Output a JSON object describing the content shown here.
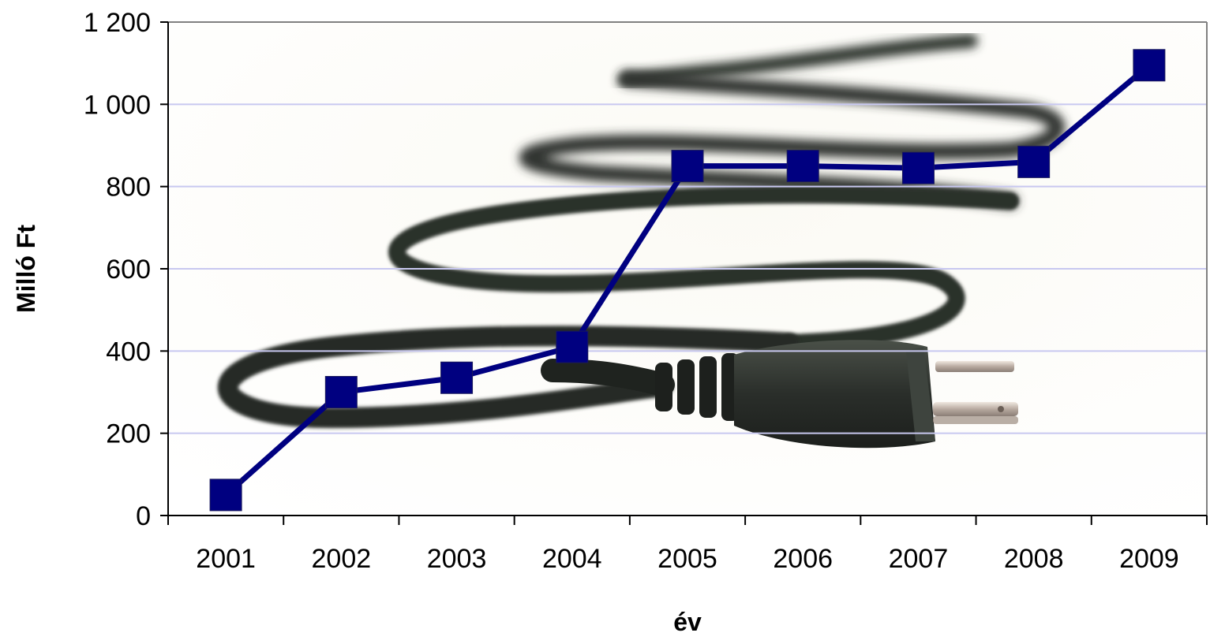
{
  "chart_data": {
    "type": "line",
    "title": "",
    "xlabel": "év",
    "ylabel": "Milló Ft",
    "categories": [
      "2001",
      "2002",
      "2003",
      "2004",
      "2005",
      "2006",
      "2007",
      "2008",
      "2009"
    ],
    "series": [
      {
        "values": [
          50,
          300,
          335,
          410,
          850,
          850,
          845,
          860,
          1095
        ],
        "color": "#000080",
        "marker": "square"
      }
    ],
    "ylim": [
      0,
      1200
    ],
    "yticks": [
      0,
      200,
      400,
      600,
      800,
      1000,
      1200
    ],
    "ytick_labels": [
      "0",
      "200",
      "400",
      "600",
      "800",
      "1 000",
      "1 200"
    ],
    "grid": true,
    "gridline_color": "#c8c8f0",
    "background": "photo of a black power cord with plug"
  }
}
